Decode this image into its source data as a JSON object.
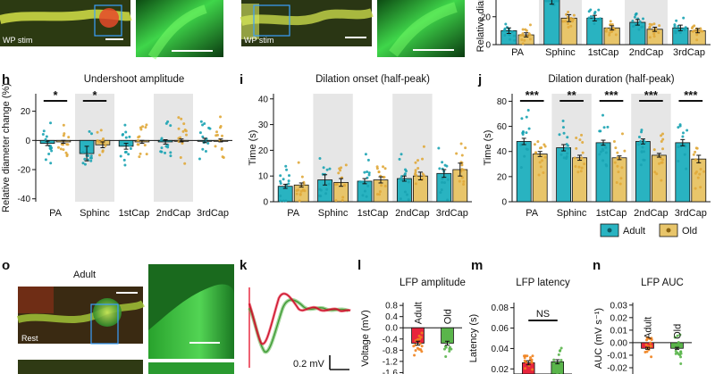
{
  "panel_letters": {
    "h": "h",
    "i": "i",
    "j": "j",
    "o": "o",
    "k": "k",
    "l": "l",
    "m": "m",
    "n": "n"
  },
  "image_labels": {
    "wp_stim_1": "WP stim",
    "wp_stim_2": "WP stim",
    "rest": "Rest",
    "adult": "Adult"
  },
  "colors": {
    "adult": "#29b3c1",
    "old": "#e8c56a",
    "adult_dot": "#1aa3b3",
    "old_dot": "#e0a83a",
    "shade": "#e6e6e6",
    "lfp_red": "#e8243c",
    "lfp_green": "#5ab54b",
    "lfp_orange": "#f0821e",
    "cell_green": "#46c84a"
  },
  "legend": {
    "adult": "Adult",
    "old": "Old"
  },
  "k_scale_label": "0.2 mV",
  "chart_data": [
    {
      "id": "g-top",
      "type": "bar",
      "ylabel": "Relative diam",
      "yticks": [
        0,
        20
      ],
      "ylim": [
        0,
        32
      ],
      "categories": [
        "PA",
        "Sphinc",
        "1stCap",
        "2ndCap",
        "3rdCap"
      ],
      "shaded": [
        "Sphinc",
        "2ndCap"
      ],
      "series": [
        {
          "name": "Adult",
          "values": [
            10,
            33,
            19,
            16,
            12
          ],
          "errors": [
            2,
            4,
            2,
            2,
            2
          ]
        },
        {
          "name": "Old",
          "values": [
            7,
            19,
            12,
            11,
            10
          ],
          "errors": [
            1.5,
            2.5,
            1.5,
            1.5,
            1.5
          ]
        }
      ]
    },
    {
      "id": "h",
      "type": "bar",
      "title": "Undershoot amplitude",
      "ylabel": "Relative diameter change (%)",
      "yticks": [
        20,
        0,
        -20,
        -40
      ],
      "ylim": [
        -42,
        32
      ],
      "categories": [
        "PA",
        "Sphinc",
        "1stCap",
        "2ndCap",
        "3rdCap"
      ],
      "shaded": [
        "Sphinc",
        "2ndCap"
      ],
      "series": [
        {
          "name": "Adult",
          "values": [
            -2,
            -9,
            -4,
            -1,
            0
          ],
          "errors": [
            1.5,
            5,
            2,
            1.5,
            1.5
          ]
        },
        {
          "name": "Old",
          "values": [
            -1,
            -3,
            -1,
            0,
            0
          ],
          "errors": [
            1,
            2,
            1,
            1,
            1
          ]
        }
      ],
      "significance": [
        {
          "category": "PA",
          "label": "*"
        },
        {
          "category": "Sphinc",
          "label": "*"
        }
      ]
    },
    {
      "id": "i",
      "type": "bar",
      "title": "Dilation onset (half-peak)",
      "ylabel": "Time (s)",
      "yticks": [
        0,
        10,
        20,
        30,
        40
      ],
      "ylim": [
        0,
        42
      ],
      "categories": [
        "PA",
        "Sphinc",
        "1stCap",
        "2ndCap",
        "3rdCap"
      ],
      "shaded": [
        "Sphinc",
        "2ndCap"
      ],
      "series": [
        {
          "name": "Adult",
          "values": [
            6,
            8.5,
            8,
            9,
            11
          ],
          "errors": [
            0.8,
            2,
            1,
            1,
            1.5
          ]
        },
        {
          "name": "Old",
          "values": [
            6.5,
            7.5,
            8.5,
            10,
            12.5
          ],
          "errors": [
            0.8,
            1.5,
            1.2,
            1.5,
            2.5
          ]
        }
      ]
    },
    {
      "id": "j",
      "type": "bar",
      "title": "Dilation duration (half-peak)",
      "ylabel": "Time (s)",
      "yticks": [
        0,
        20,
        40,
        60,
        80
      ],
      "ylim": [
        0,
        86
      ],
      "categories": [
        "PA",
        "Sphinc",
        "1stCap",
        "2ndCap",
        "3rdCap"
      ],
      "shaded": [
        "Sphinc",
        "2ndCap"
      ],
      "series": [
        {
          "name": "Adult",
          "values": [
            48,
            43,
            47,
            48,
            47
          ],
          "errors": [
            2.5,
            2.5,
            2,
            2,
            2.5
          ]
        },
        {
          "name": "Old",
          "values": [
            38,
            35,
            35,
            37,
            34
          ],
          "errors": [
            2,
            2,
            1.5,
            1.5,
            3
          ]
        }
      ],
      "significance": [
        {
          "category": "PA",
          "label": "***"
        },
        {
          "category": "Sphinc",
          "label": "**"
        },
        {
          "category": "1stCap",
          "label": "***"
        },
        {
          "category": "2ndCap",
          "label": "***"
        },
        {
          "category": "3rdCap",
          "label": "***"
        }
      ]
    },
    {
      "id": "l",
      "type": "bar",
      "title": "LFP amplitude",
      "ylabel": "Voltage (mV)",
      "yticks": [
        0.8,
        0.4,
        0,
        -0.4,
        -0.8,
        -1.2,
        -1.6
      ],
      "ylim": [
        -1.65,
        0.9
      ],
      "categories": [
        "Adult",
        "Old"
      ],
      "series": [
        {
          "name": "LFP amplitude",
          "values": [
            -0.55,
            -0.55
          ],
          "errors": [
            0.07,
            0.07
          ]
        }
      ]
    },
    {
      "id": "m",
      "type": "bar",
      "title": "LFP latency",
      "ylabel": "Latency (s)",
      "yticks": [
        0.02,
        0.04,
        0.06,
        0.08
      ],
      "ylim": [
        0.015,
        0.085
      ],
      "categories": [
        "Adult",
        "Old"
      ],
      "series": [
        {
          "name": "LFP latency",
          "values": [
            0.026,
            0.027
          ],
          "errors": [
            0.002,
            0.002
          ]
        }
      ],
      "significance": [
        {
          "label": "NS"
        }
      ]
    },
    {
      "id": "n",
      "type": "bar",
      "title": "LFP AUC",
      "ylabel": "AUC (mV s⁻¹)",
      "yticks": [
        0.03,
        0.02,
        0.01,
        0.0,
        -0.01,
        -0.02
      ],
      "ylim": [
        -0.025,
        0.032
      ],
      "categories": [
        "Adult",
        "Old"
      ],
      "series": [
        {
          "name": "LFP AUC",
          "values": [
            -0.0045,
            -0.0045
          ],
          "errors": [
            0.0008,
            0.0008
          ]
        }
      ]
    }
  ]
}
